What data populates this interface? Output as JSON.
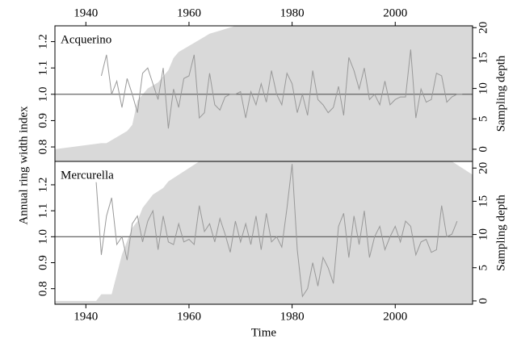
{
  "chart_data": [
    {
      "type": "line",
      "label": "Acquerino",
      "ylabel": "Annual ring width index",
      "y2label": "Sampling depth",
      "xlim": [
        1934,
        2015
      ],
      "xticks": [
        1940,
        1960,
        1980,
        2000
      ],
      "xtick_side": "top",
      "ylim": [
        0.745,
        1.26
      ],
      "yticks": [
        0.8,
        0.9,
        {
          "value": 1.0,
          "label": "1.0"
        },
        1.1,
        1.2
      ],
      "y2lim": [
        -2,
        20.3
      ],
      "y2ticks": [
        0,
        5,
        10,
        15,
        20
      ],
      "reference": 1,
      "color": "#999999",
      "depth_color": "#d9d9d9",
      "x": [
        1943,
        1944,
        1945,
        1946,
        1947,
        1948,
        1949,
        1950,
        1951,
        1952,
        1953,
        1954,
        1955,
        1956,
        1957,
        1958,
        1959,
        1960,
        1961,
        1962,
        1963,
        1964,
        1965,
        1966,
        1967,
        1968,
        1969,
        1970,
        1971,
        1972,
        1973,
        1974,
        1975,
        1976,
        1977,
        1978,
        1979,
        1980,
        1981,
        1982,
        1983,
        1984,
        1985,
        1986,
        1987,
        1988,
        1989,
        1990,
        1991,
        1992,
        1993,
        1994,
        1995,
        1996,
        1997,
        1998,
        1999,
        2000,
        2001,
        2002,
        2003,
        2004,
        2005,
        2006,
        2007,
        2008,
        2009,
        2010,
        2011,
        2012,
        2013
      ],
      "values": [
        1.07,
        1.15,
        1.0,
        1.05,
        0.95,
        1.06,
        1.0,
        0.93,
        1.08,
        1.1,
        1.04,
        0.98,
        1.1,
        0.87,
        1.02,
        0.95,
        1.06,
        1.07,
        1.15,
        0.91,
        0.93,
        1.08,
        0.96,
        0.94,
        0.99,
        1.0,
        1.0,
        1.01,
        0.91,
        1.01,
        0.96,
        1.04,
        0.97,
        1.09,
        1.0,
        0.96,
        1.08,
        1.04,
        0.93,
        1.0,
        0.92,
        1.09,
        0.98,
        0.96,
        0.93,
        0.95,
        1.03,
        0.92,
        1.14,
        1.09,
        1.02,
        1.1,
        0.98,
        1.0,
        0.96,
        1.05,
        0.96,
        0.98,
        0.99,
        0.99,
        1.17,
        0.91,
        1.02,
        0.97,
        0.98,
        1.08,
        1.07,
        0.97,
        0.99,
        1.0,
        1.0
      ],
      "depth_x": [
        1934,
        1943,
        1944,
        1946,
        1948,
        1949,
        1950,
        1951,
        1952,
        1954,
        1956,
        1957,
        1958,
        1960,
        1962,
        1964,
        1966,
        1969,
        2015
      ],
      "depth": [
        0,
        1,
        1,
        2,
        3,
        4,
        8,
        9,
        10,
        11,
        13,
        15,
        16,
        17,
        18,
        19,
        19.5,
        20.3,
        20.3
      ]
    },
    {
      "type": "line",
      "label": "Mercurella",
      "xlabel": "Time",
      "y2label": "Sampling depth",
      "xlim": [
        1934,
        2015
      ],
      "xticks": [
        1940,
        1960,
        1980,
        2000
      ],
      "xtick_side": "bottom",
      "ylim": [
        0.74,
        1.29
      ],
      "yticks": [
        0.8,
        0.9,
        {
          "value": 1.0,
          "label": "1.0"
        },
        1.1,
        1.2
      ],
      "y2lim": [
        -0.5,
        21
      ],
      "y2ticks": [
        0,
        5,
        10,
        15,
        20
      ],
      "reference": 1,
      "color": "#999999",
      "depth_color": "#d9d9d9",
      "x": [
        1942,
        1943,
        1944,
        1945,
        1946,
        1947,
        1948,
        1949,
        1950,
        1951,
        1952,
        1953,
        1954,
        1955,
        1956,
        1957,
        1958,
        1959,
        1960,
        1961,
        1962,
        1963,
        1964,
        1965,
        1966,
        1967,
        1968,
        1969,
        1970,
        1971,
        1972,
        1973,
        1974,
        1975,
        1976,
        1977,
        1978,
        1979,
        1980,
        1981,
        1982,
        1983,
        1984,
        1985,
        1986,
        1987,
        1988,
        1989,
        1990,
        1991,
        1992,
        1993,
        1994,
        1995,
        1996,
        1997,
        1998,
        1999,
        2000,
        2001,
        2002,
        2003,
        2004,
        2005,
        2006,
        2007,
        2008,
        2009,
        2010,
        2011,
        2012
      ],
      "values": [
        1.21,
        0.93,
        1.08,
        1.15,
        0.97,
        1.0,
        0.91,
        1.05,
        1.08,
        0.98,
        1.06,
        1.1,
        0.95,
        1.08,
        0.98,
        0.97,
        1.05,
        0.98,
        0.99,
        0.97,
        1.12,
        1.02,
        1.05,
        0.98,
        1.07,
        1.01,
        0.94,
        1.06,
        0.98,
        1.05,
        0.97,
        1.08,
        0.95,
        1.09,
        0.98,
        1.0,
        0.96,
        1.11,
        1.28,
        0.95,
        0.77,
        0.8,
        0.9,
        0.81,
        0.92,
        0.88,
        0.82,
        1.04,
        1.09,
        0.92,
        1.08,
        0.97,
        1.1,
        0.92,
        1.0,
        1.04,
        0.95,
        1.0,
        1.04,
        0.98,
        1.06,
        1.04,
        0.93,
        0.98,
        0.99,
        0.94,
        0.95,
        1.12,
        1.0,
        1.01,
        1.06
      ],
      "depth_x": [
        1934,
        1942,
        1943,
        1945,
        1946,
        1947,
        1948,
        1949,
        1950,
        1951,
        1953,
        1955,
        1956,
        1958,
        1960,
        1962,
        2011,
        2013,
        2015
      ],
      "depth": [
        0,
        0,
        1,
        1,
        4,
        7,
        9,
        11,
        12,
        14,
        16,
        17,
        18,
        19,
        20,
        21,
        21,
        20,
        19
      ]
    }
  ]
}
